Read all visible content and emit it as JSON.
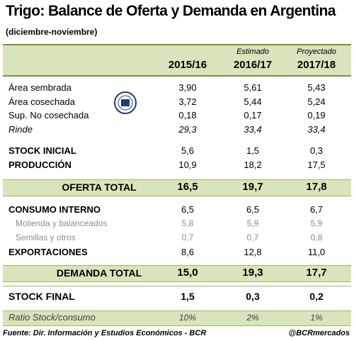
{
  "header": {
    "title": "Trigo: Balance de Oferta y Demanda en Argentina",
    "subtitle": "(diciembre-noviembre)"
  },
  "table": {
    "column_notes": [
      null,
      "Estimado",
      "Proyectado"
    ],
    "columns": [
      "2015/16",
      "2016/17",
      "2017/18"
    ],
    "rows": [
      {
        "label": "Área sembrada",
        "values": [
          "3,90",
          "5,61",
          "5,43"
        ]
      },
      {
        "label": "Área cosechada",
        "values": [
          "3,72",
          "5,44",
          "5,24"
        ]
      },
      {
        "label": "Sup. No cosechada",
        "values": [
          "0,18",
          "0,17",
          "0,19"
        ]
      },
      {
        "label": "Rinde",
        "values": [
          "29,3",
          "33,4",
          "33,4"
        ]
      },
      {
        "label": "STOCK INICIAL",
        "values": [
          "5,6",
          "1,5",
          "0,3"
        ]
      },
      {
        "label": "PRODUCCIÓN",
        "values": [
          "10,9",
          "18,2",
          "17,5"
        ]
      },
      {
        "label": "OFERTA TOTAL",
        "values": [
          "16,5",
          "19,7",
          "17,8"
        ]
      },
      {
        "label": "CONSUMO INTERNO",
        "values": [
          "6,5",
          "6,5",
          "6,7"
        ]
      },
      {
        "label": "Molienda y balanceados",
        "values": [
          "5,8",
          "5,9",
          "5,9"
        ]
      },
      {
        "label": "Semillas y otros",
        "values": [
          "0,7",
          "0,7",
          "0,8"
        ]
      },
      {
        "label": "EXPORTACIONES",
        "values": [
          "8,6",
          "12,8",
          "11,0"
        ]
      },
      {
        "label": "DEMANDA TOTAL",
        "values": [
          "15,0",
          "19,3",
          "17,7"
        ]
      },
      {
        "label": "STOCK FINAL",
        "values": [
          "1,5",
          "0,3",
          "0,2"
        ]
      },
      {
        "label": "Ratio Stock/consumo",
        "values": [
          "10%",
          "2%",
          "1%"
        ]
      }
    ]
  },
  "footer": {
    "source": "Fuente: Dir. Información y Estudios Económicos - BCR",
    "handle": "@BCRmercados"
  }
}
